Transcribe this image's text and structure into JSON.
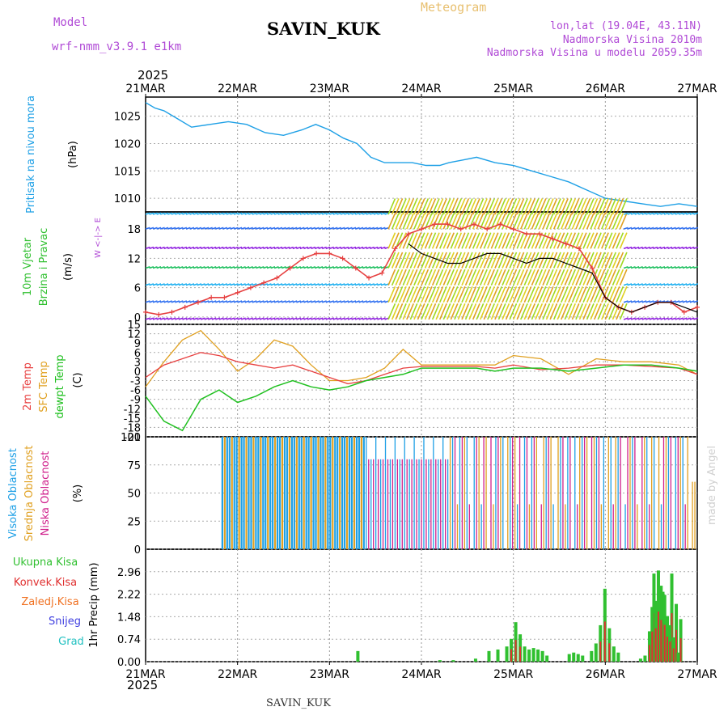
{
  "header": {
    "model_label": "Model",
    "model_name": "wrf-nmm_v3.9.1 e1km",
    "chart_title": "SAVIN_KUK",
    "product": "Meteogram",
    "lonlat": "lon,lat (19.04E, 43.11N)",
    "altitude": "Nadmorska Visina 2010m",
    "model_altitude": "Nadmorska Visina u modelu 2059.35m",
    "footer": "SAVIN_KUK",
    "watermark": "made by Angel"
  },
  "colors": {
    "pressure": "#1ea0e6",
    "gust": "#e64040",
    "wind10": "#000000",
    "t2m": "#e84040",
    "tsfc": "#e0a020",
    "dewpt": "#20c020",
    "high_cloud": "#1ea0e6",
    "mid_cloud": "#e0a020",
    "low_cloud": "#d0208c",
    "rain_total": "#30c030",
    "rain_conv": "#e03030",
    "rain_frz": "#f07020",
    "snow": "#4040e0",
    "hail": "#20c0c0",
    "purple_text": "#b04ad6"
  },
  "chart_data": [
    {
      "type": "line",
      "panel": "pressure",
      "ylabel_left": "Pritisak na nivou mora",
      "unit": "(hPa)",
      "yticks": [
        1010,
        1015,
        1020,
        1025
      ],
      "ylim": [
        1007.5,
        1028.5
      ],
      "x_days": [
        0,
        0.1,
        0.2,
        0.35,
        0.5,
        0.7,
        0.9,
        1.1,
        1.3,
        1.5,
        1.7,
        1.85,
        2.0,
        2.15,
        2.3,
        2.45,
        2.6,
        2.75,
        2.9,
        3.05,
        3.2,
        3.3,
        3.45,
        3.6,
        3.8,
        4.0,
        4.2,
        4.4,
        4.6,
        4.8,
        5.0,
        5.2,
        5.4,
        5.6,
        5.8,
        6.0
      ],
      "values": [
        1027.5,
        1026.5,
        1026,
        1024.5,
        1023,
        1023.5,
        1024,
        1023.5,
        1022,
        1021.5,
        1022.5,
        1023.5,
        1022.5,
        1021,
        1020,
        1017.5,
        1016.5,
        1016.5,
        1016.5,
        1016,
        1016,
        1016.5,
        1017,
        1017.5,
        1016.5,
        1016,
        1015,
        1014,
        1013,
        1011.5,
        1010,
        1009.5,
        1009,
        1008.5,
        1009,
        1008.5
      ]
    },
    {
      "type": "line",
      "panel": "wind",
      "ylabel_left_1": "10m Vjetar",
      "ylabel_left_2": "Brzina i Pravac",
      "unit": "(m/s)",
      "yticks": [
        0,
        6,
        12,
        18
      ],
      "ylim": [
        -1.5,
        21.5
      ],
      "compass": "W <-|-> E",
      "series": [
        {
          "name": "gust",
          "values": [
            1,
            0.5,
            1,
            2,
            3,
            4,
            4,
            5,
            6,
            7,
            8,
            10,
            12,
            13,
            13,
            12,
            10,
            8,
            9,
            14,
            17,
            18,
            19,
            19,
            18,
            19,
            18,
            19,
            18,
            17,
            17,
            16,
            15,
            14,
            10,
            4,
            2,
            1,
            2,
            3,
            3,
            1,
            2
          ]
        },
        {
          "name": "10m",
          "values": [
            null,
            null,
            null,
            null,
            null,
            null,
            null,
            null,
            null,
            null,
            null,
            null,
            null,
            null,
            null,
            null,
            null,
            null,
            null,
            null,
            15,
            13,
            12,
            11,
            11,
            12,
            13,
            13,
            12,
            11,
            12,
            12,
            11,
            10,
            9,
            4,
            2,
            1,
            2,
            3,
            3,
            2,
            1
          ]
        }
      ]
    },
    {
      "type": "line",
      "panel": "temperature",
      "ylabel_1": "2m Temp",
      "ylabel_2": "SFC Temp",
      "ylabel_3": "dewpt Temp",
      "unit": "(C)",
      "yticks": [
        -21,
        -18,
        -15,
        -12,
        -9,
        -6,
        -3,
        0,
        3,
        6,
        9,
        12,
        15
      ],
      "ylim": [
        -21,
        15
      ],
      "x_days": [
        0,
        0.2,
        0.4,
        0.6,
        0.8,
        1.0,
        1.2,
        1.4,
        1.6,
        1.8,
        2.0,
        2.2,
        2.4,
        2.6,
        2.8,
        3.0,
        3.2,
        3.4,
        3.6,
        3.8,
        4.0,
        4.3,
        4.6,
        4.9,
        5.2,
        5.5,
        5.8,
        6.0
      ],
      "series": [
        {
          "name": "2m",
          "values": [
            -2,
            2,
            4,
            6,
            5,
            3,
            2,
            1,
            2,
            0,
            -2,
            -4,
            -3,
            -1,
            1,
            1.5,
            1.5,
            1.5,
            1.5,
            1,
            2,
            0.5,
            1,
            2,
            2,
            1.5,
            1,
            -1
          ]
        },
        {
          "name": "sfc",
          "values": [
            -5,
            3,
            10,
            13,
            7,
            0,
            4,
            10,
            8,
            2,
            -3,
            -3,
            -2,
            1,
            7,
            2,
            2,
            2,
            2,
            2,
            5,
            4,
            -1,
            4,
            3,
            3,
            2,
            -1
          ]
        },
        {
          "name": "dewpt",
          "values": [
            -8,
            -16,
            -19,
            -9,
            -6,
            -10,
            -8,
            -5,
            -3,
            -5,
            -6,
            -5,
            -3,
            -2,
            -1,
            1,
            1,
            1,
            1,
            0,
            1,
            1,
            0,
            1,
            2,
            2,
            1,
            0
          ]
        }
      ]
    },
    {
      "type": "bar",
      "panel": "cloud",
      "ylabel_1": "Visoka Oblacnost",
      "ylabel_2": "Srednja Oblacnost",
      "ylabel_3": "Niska Oblacnost",
      "unit": "(%)",
      "yticks": [
        0,
        25,
        50,
        75,
        100
      ],
      "ylim": [
        0,
        100
      ]
    },
    {
      "type": "bar",
      "panel": "precip",
      "ylabel": "1hr Precip (mm)",
      "yticks": [
        0,
        0.74,
        1.48,
        2.22,
        2.96
      ],
      "ylim": [
        0,
        3.7
      ],
      "legend": [
        "Ukupna Kisa",
        "Konvek.Kisa",
        "Zaledj.Kisa",
        "Snijeg",
        "Grad"
      ]
    }
  ],
  "x_axis": {
    "year": "2025",
    "labels": [
      "21MAR",
      "22MAR",
      "23MAR",
      "24MAR",
      "25MAR",
      "26MAR",
      "27MAR"
    ]
  }
}
